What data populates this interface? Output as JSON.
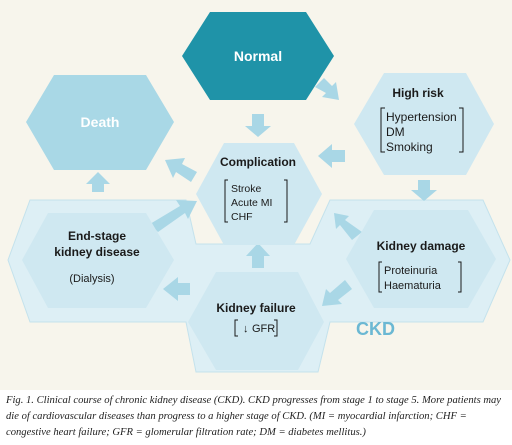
{
  "nodes": {
    "normal": {
      "title": "Normal"
    },
    "death": {
      "title": "Death"
    },
    "high_risk": {
      "title": "High risk",
      "items": [
        "Hypertension",
        "DM",
        "Smoking"
      ]
    },
    "complication": {
      "title": "Complication",
      "items": [
        "Stroke",
        "Acute MI",
        "CHF"
      ]
    },
    "end_stage": {
      "title_lines": [
        "End-stage",
        "kidney disease"
      ],
      "note": "(Dialysis)"
    },
    "kidney_damage": {
      "title": "Kidney damage",
      "items": [
        "Proteinuria",
        "Haematuria"
      ]
    },
    "kidney_failure": {
      "title": "Kidney failure",
      "item": "GFR",
      "item_arrow": "↓"
    }
  },
  "region_label": "CKD",
  "caption": "Fig. 1. Clinical course of chronic kidney disease (CKD). CKD progresses from stage 1 to stage 5. More patients may die of cardiovascular diseases than progress to a higher stage of CKD. (MI = myocardial infarction; CHF = congestive heart failure; GFR = glomerular filtration rate; DM = diabetes mellitus.)",
  "colors": {
    "normal_fill": "#1f93a8",
    "death_fill": "#a9d8e6",
    "light_fill": "#cfe8f1",
    "ckd_band": "#ddeff5",
    "arrow": "#a9d7e6",
    "text_dark": "#1a1a1a",
    "text_white": "#ffffff",
    "ckd_text": "#6bb8d3"
  }
}
